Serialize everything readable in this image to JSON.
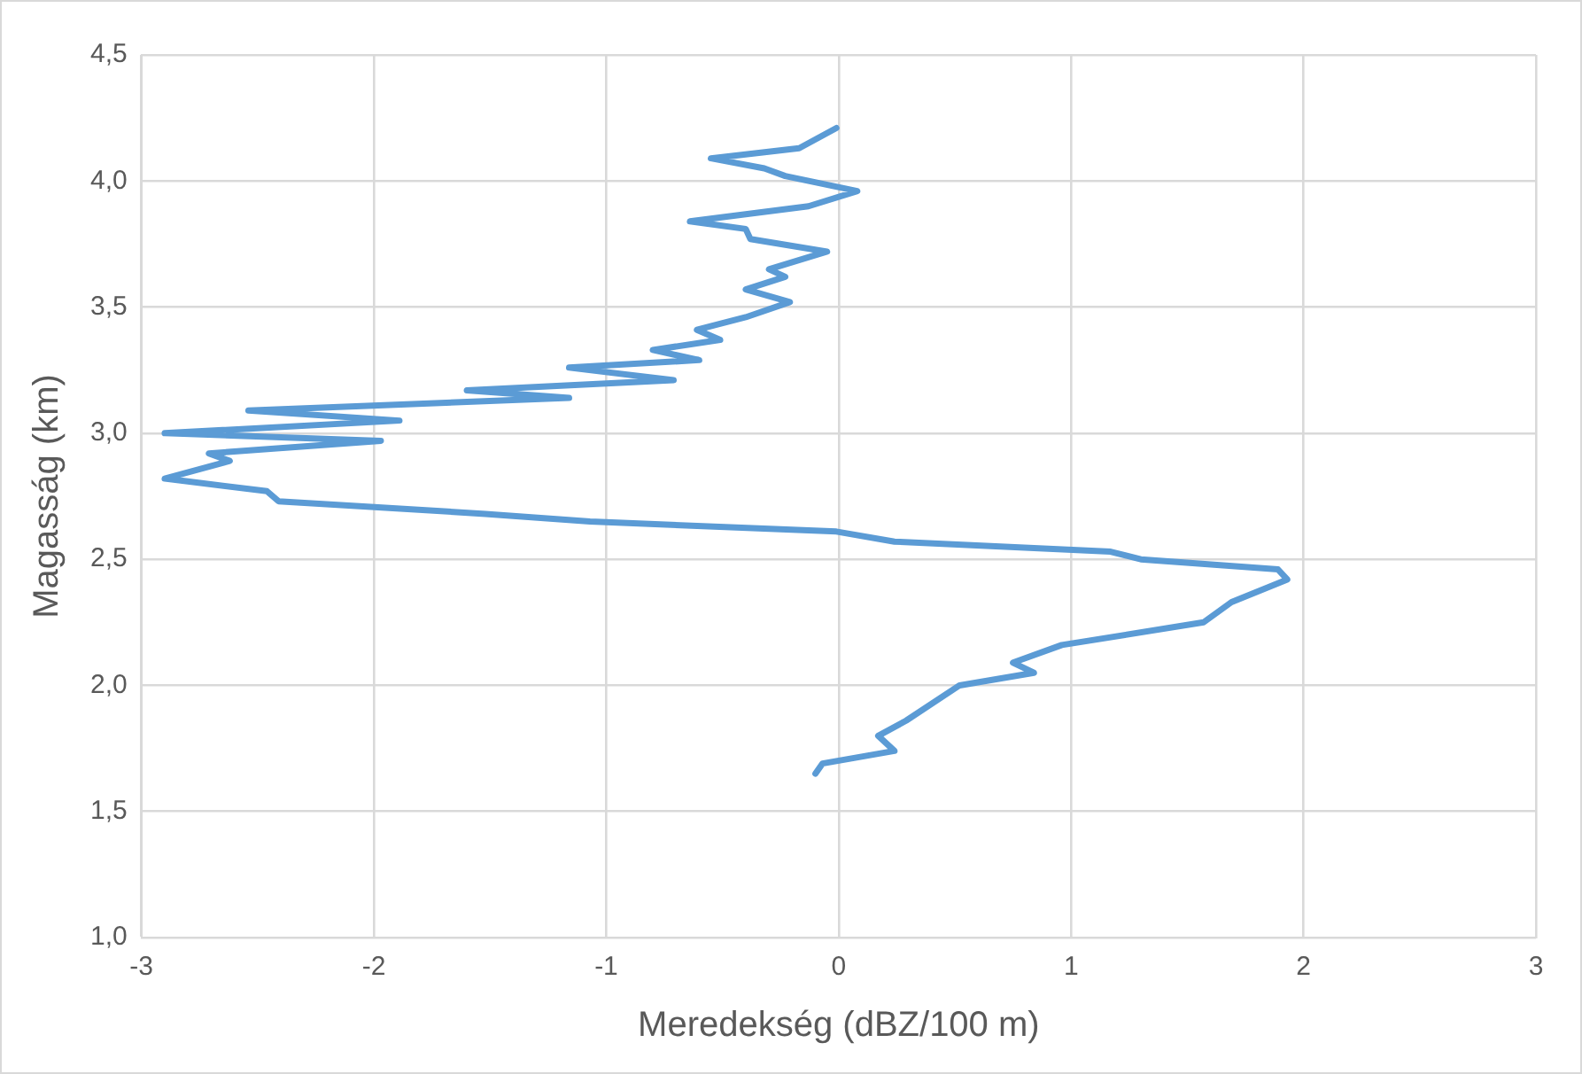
{
  "chart_data": {
    "type": "line",
    "xlabel": "Meredekség (dBZ/100 m)",
    "ylabel": "Magasság (km)",
    "xlim": [
      -3,
      3
    ],
    "xticks": [
      -3,
      -2,
      -1,
      0,
      1,
      2,
      3
    ],
    "ylim": [
      1,
      4.5
    ],
    "yticks": [
      {
        "value": 1,
        "label": "1,0"
      },
      {
        "value": 1.5,
        "label": "1,5"
      },
      {
        "value": 2,
        "label": "2,0"
      },
      {
        "value": 2.5,
        "label": "2,5"
      },
      {
        "value": 3,
        "label": "3,0"
      },
      {
        "value": 3.5,
        "label": "3,5"
      },
      {
        "value": 4,
        "label": "4,0"
      },
      {
        "value": 4.5,
        "label": "4,5"
      }
    ],
    "grid": true,
    "legend": false,
    "marker": "none",
    "line_style": "solid",
    "series": [
      {
        "color": "#5b9bd5",
        "x": [
          -0.1,
          -0.07,
          0.24,
          0.17,
          0.29,
          0.52,
          0.84,
          0.75,
          0.96,
          1.57,
          1.69,
          1.93,
          1.89,
          1.3,
          1.17,
          0.24,
          -0.01,
          -1.07,
          -1.52,
          -2.41,
          -2.46,
          -2.9,
          -2.62,
          -2.71,
          -1.97,
          -2.9,
          -1.89,
          -2.54,
          -1.16,
          -1.6,
          -0.71,
          -1.16,
          -0.6,
          -0.8,
          -0.51,
          -0.61,
          -0.4,
          -0.21,
          -0.4,
          -0.23,
          -0.3,
          -0.05,
          -0.38,
          -0.4,
          -0.64,
          -0.13,
          0.08,
          -0.23,
          -0.32,
          -0.55,
          -0.17,
          -0.01
        ],
        "values": [
          1.65,
          1.69,
          1.74,
          1.8,
          1.86,
          2.0,
          2.05,
          2.09,
          2.16,
          2.25,
          2.33,
          2.42,
          2.46,
          2.5,
          2.53,
          2.57,
          2.61,
          2.65,
          2.68,
          2.73,
          2.77,
          2.82,
          2.89,
          2.92,
          2.97,
          3.0,
          3.05,
          3.09,
          3.14,
          3.17,
          3.21,
          3.26,
          3.29,
          3.33,
          3.37,
          3.41,
          3.46,
          3.52,
          3.57,
          3.62,
          3.65,
          3.72,
          3.77,
          3.81,
          3.84,
          3.9,
          3.96,
          4.02,
          4.05,
          4.09,
          4.13,
          4.21
        ]
      }
    ]
  }
}
